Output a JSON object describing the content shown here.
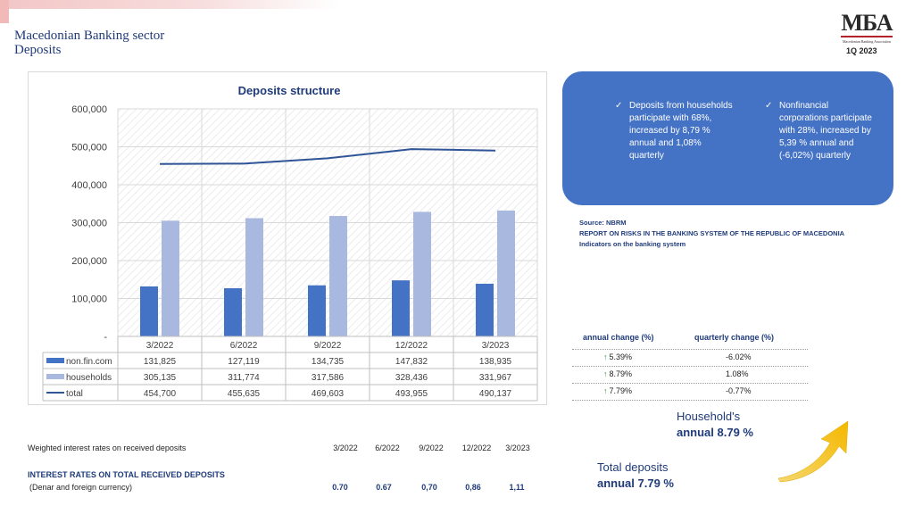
{
  "header": {
    "title_line1": "Macedonian Banking sector",
    "title_line2": "Deposits",
    "period": "1Q 2023",
    "logo_mark": "МБА",
    "logo_sub": "Macedonian Banking Association"
  },
  "colors": {
    "nonfin": "#4472c4",
    "households": "#a9b8de",
    "total": "#2f5597",
    "panel": "#4472c4",
    "arrow_up": "#2e9b3b",
    "highlight_arrow": "#f5c518"
  },
  "chart_data": {
    "type": "bar",
    "title": "Deposits structure",
    "categories": [
      "3/2022",
      "6/2022",
      "9/2022",
      "12/2022",
      "3/2023"
    ],
    "series": [
      {
        "name": "non.fin.com",
        "type": "bar",
        "values": [
          131825,
          127119,
          134735,
          147832,
          138935
        ],
        "display": [
          "131,825",
          "127,119",
          "134,735",
          "147,832",
          "138,935"
        ]
      },
      {
        "name": "households",
        "type": "bar",
        "values": [
          305135,
          311774,
          317586,
          328436,
          331967
        ],
        "display": [
          "305,135",
          "311,774",
          "317,586",
          "328,436",
          "331,967"
        ]
      },
      {
        "name": "total",
        "type": "line",
        "values": [
          454700,
          455635,
          469603,
          493955,
          490137
        ],
        "display": [
          "454,700",
          "455,635",
          "469,603",
          "493,955",
          "490,137"
        ]
      }
    ],
    "ylim": [
      0,
      600000
    ],
    "yticks": [
      "-",
      "100,000",
      "200,000",
      "300,000",
      "400,000",
      "500,000",
      "600,000"
    ],
    "grid": true,
    "legend": "data-table"
  },
  "panel": {
    "bullet1": "Deposits from households participate with 68%, increased by 8,79 % annual and 1,08% quarterly",
    "bullet2": "Nonfinancial corporations participate with 28%, increased  by 5,39 % annual  and (-6,02%) quarterly"
  },
  "source": {
    "line1": "Source: NBRM",
    "line2": "REPORT ON RISKS IN THE BANKING SYSTEM OF THE REPUBLIC OF MACEDONIA",
    "line3": "Indicators on the banking system"
  },
  "changes": {
    "annual_header": "annual change (%)",
    "quarterly_header": "quarterly change (%)",
    "rows": [
      {
        "annual": "5.39%",
        "quarterly": "-6.02%"
      },
      {
        "annual": "8.79%",
        "quarterly": "1.08%"
      },
      {
        "annual": "7.79%",
        "quarterly": "-0.77%"
      }
    ]
  },
  "highlights": {
    "household_label": "Household's",
    "household_value": "annual 8.79 %",
    "total_label": "Total deposits",
    "total_value": "annual 7.79 %"
  },
  "rates": {
    "label": "Weighted interest rates on received deposits",
    "title": "INTEREST RATES ON TOTAL RECEIVED DEPOSITS",
    "subtitle": "(Denar and foreign currency)",
    "periods": [
      "3/2022",
      "6/2022",
      "9/2022",
      "12/2022",
      "3/2023"
    ],
    "values": [
      "0.70",
      "0.67",
      "0,70",
      "0,86",
      "1,11"
    ]
  }
}
